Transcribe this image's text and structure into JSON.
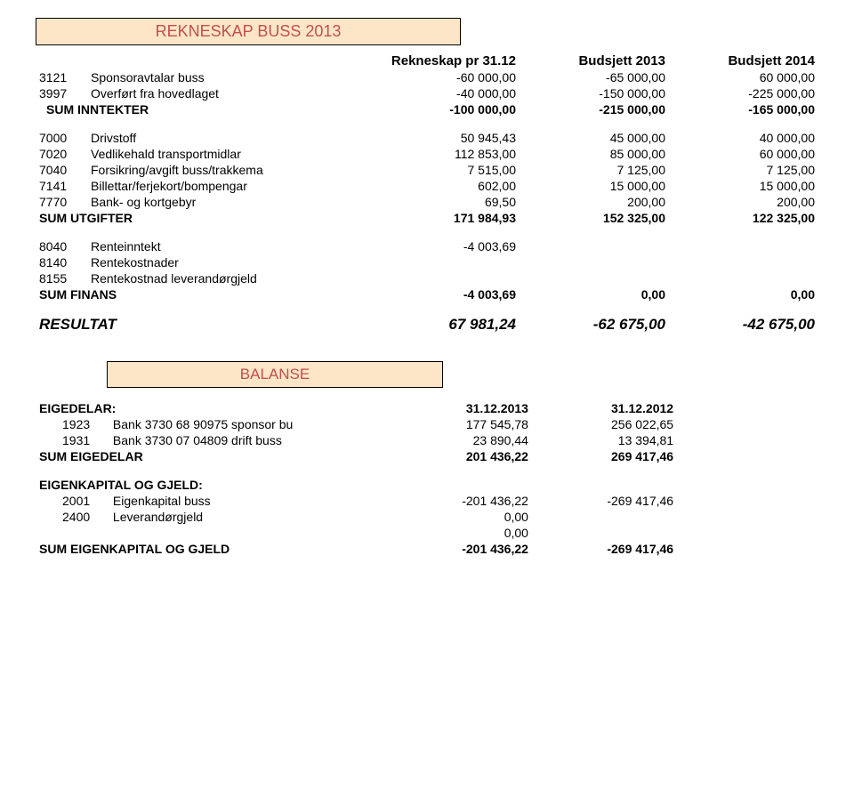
{
  "title": "REKNESKAP BUSS 2013",
  "headers": {
    "col1": "Rekneskap pr 31.12",
    "col2": "Budsjett 2013",
    "col3": "Budsjett 2014"
  },
  "inntekter": {
    "rows": [
      {
        "code": "3121",
        "label": "Sponsoravtalar buss",
        "c1": "-60 000,00",
        "c2": "-65 000,00",
        "c3": "60 000,00"
      },
      {
        "code": "3997",
        "label": "Overført fra hovedlaget",
        "c1": "-40 000,00",
        "c2": "-150 000,00",
        "c3": "-225 000,00"
      }
    ],
    "sum": {
      "label": "SUM INNTEKTER",
      "c1": "-100 000,00",
      "c2": "-215 000,00",
      "c3": "-165 000,00"
    }
  },
  "utgifter": {
    "rows": [
      {
        "code": "7000",
        "label": "Drivstoff",
        "c1": "50 945,43",
        "c2": "45 000,00",
        "c3": "40 000,00"
      },
      {
        "code": "7020",
        "label": "Vedlikehald transportmidlar",
        "c1": "112 853,00",
        "c2": "85 000,00",
        "c3": "60 000,00"
      },
      {
        "code": "7040",
        "label": "Forsikring/avgift buss/trakkema",
        "c1": "7 515,00",
        "c2": "7 125,00",
        "c3": "7 125,00"
      },
      {
        "code": "7141",
        "label": "Billettar/ferjekort/bompengar",
        "c1": "602,00",
        "c2": "15 000,00",
        "c3": "15 000,00"
      },
      {
        "code": "7770",
        "label": "Bank- og kortgebyr",
        "c1": "69,50",
        "c2": "200,00",
        "c3": "200,00"
      }
    ],
    "sum": {
      "label": "SUM UTGIFTER",
      "c1": "171 984,93",
      "c2": "152 325,00",
      "c3": "122 325,00"
    }
  },
  "finans": {
    "rows": [
      {
        "code": "8040",
        "label": "Renteinntekt",
        "c1": "-4 003,69",
        "c2": "",
        "c3": ""
      },
      {
        "code": "8140",
        "label": "Rentekostnader",
        "c1": "",
        "c2": "",
        "c3": ""
      },
      {
        "code": "8155",
        "label": "Rentekostnad leverandørgjeld",
        "c1": "",
        "c2": "",
        "c3": ""
      }
    ],
    "sum": {
      "label": "SUM FINANS",
      "c1": "-4 003,69",
      "c2": "0,00",
      "c3": "0,00"
    }
  },
  "resultat": {
    "label": "RESULTAT",
    "c1": "67 981,24",
    "c2": "-62 675,00",
    "c3": "-42 675,00"
  },
  "balanse_title": "BALANSE",
  "balanse_headers": {
    "h1": "31.12.2013",
    "h2": "31.12.2012"
  },
  "eigedelar": {
    "title": "EIGEDELAR:",
    "rows": [
      {
        "code": "1923",
        "label": "Bank 3730 68 90975 sponsor bu",
        "c1": "177 545,78",
        "c2": "256 022,65"
      },
      {
        "code": "1931",
        "label": "Bank 3730 07 04809 drift buss",
        "c1": "23 890,44",
        "c2": "13 394,81"
      }
    ],
    "sum": {
      "label": "SUM EIGEDELAR",
      "c1": "201 436,22",
      "c2": "269 417,46"
    }
  },
  "eigenkapital": {
    "title": "EIGENKAPITAL OG GJELD:",
    "rows": [
      {
        "code": "2001",
        "label": "Eigenkapital buss",
        "c1": "-201 436,22",
        "c2": "-269 417,46"
      },
      {
        "code": "2400",
        "label": "Leverandørgjeld",
        "c1": "0,00",
        "c2": ""
      },
      {
        "code": "",
        "label": "",
        "c1": "0,00",
        "c2": ""
      }
    ],
    "sum": {
      "label": "SUM EIGENKAPITAL OG GJELD",
      "c1": "-201 436,22",
      "c2": "-269 417,46"
    }
  }
}
